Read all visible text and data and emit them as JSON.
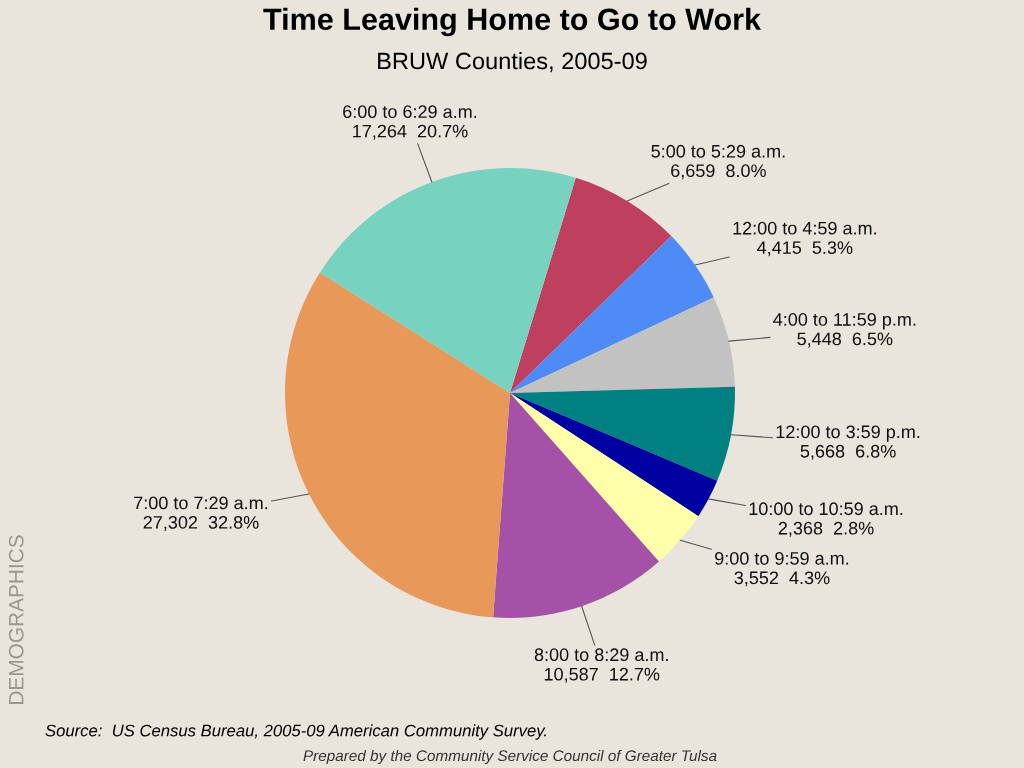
{
  "chart_data": {
    "type": "pie",
    "title": "Time Leaving Home to Go to Work",
    "subtitle": "BRUW Counties, 2005-09",
    "categories": [
      "5:00 to 5:29 a.m.",
      "12:00 to 4:59 a.m.",
      "4:00 to 11:59 p.m.",
      "12:00 to 3:59 p.m.",
      "10:00 to 10:59 a.m.",
      "9:00 to 9:59 a.m.",
      "8:00 to 8:29 a.m.",
      "7:00 to 7:29 a.m.",
      "6:00 to 6:29 a.m."
    ],
    "values": [
      6659,
      4415,
      5448,
      5668,
      2368,
      3552,
      10587,
      27302,
      17264
    ],
    "value_labels": [
      "6,659  8.0%",
      "4,415  5.3%",
      "5,448  6.5%",
      "5,668  6.8%",
      "2,368  2.8%",
      "3,552  4.3%",
      "10,587  12.7%",
      "27,302  32.8%",
      "17,264  20.7%"
    ],
    "colors": [
      "#be405e",
      "#4f8bf7",
      "#c2c2c2",
      "#008080",
      "#0000a0",
      "#ffffaa",
      "#a551a8",
      "#e89858",
      "#78d2c0"
    ],
    "annotations": [
      "Source:  US Census Bureau, 2005-09 American Community Survey.",
      "Prepared by the Community Service Council of Greater Tulsa",
      "DEMOGRAPHICS"
    ],
    "legend": false
  }
}
